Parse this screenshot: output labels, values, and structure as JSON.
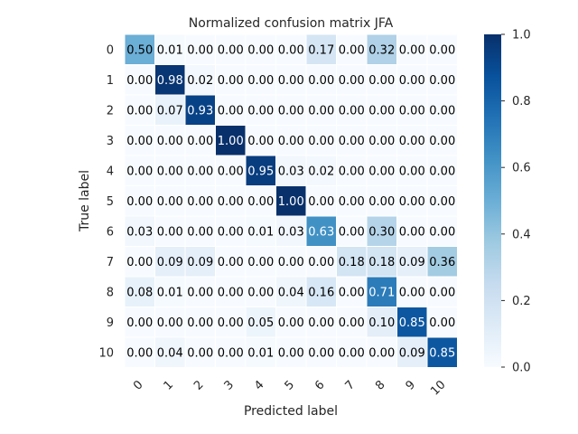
{
  "chart_data": {
    "type": "heatmap",
    "title": "Normalized confusion matrix JFA",
    "xlabel": "Predicted label",
    "ylabel": "True label",
    "x_categories": [
      "0",
      "1",
      "2",
      "3",
      "4",
      "5",
      "6",
      "7",
      "8",
      "9",
      "10"
    ],
    "y_categories": [
      "0",
      "1",
      "2",
      "3",
      "4",
      "5",
      "6",
      "7",
      "8",
      "9",
      "10"
    ],
    "values": [
      [
        0.5,
        0.01,
        0.0,
        0.0,
        0.0,
        0.0,
        0.17,
        0.0,
        0.32,
        0.0,
        0.0
      ],
      [
        0.0,
        0.98,
        0.02,
        0.0,
        0.0,
        0.0,
        0.0,
        0.0,
        0.0,
        0.0,
        0.0
      ],
      [
        0.0,
        0.07,
        0.93,
        0.0,
        0.0,
        0.0,
        0.0,
        0.0,
        0.0,
        0.0,
        0.0
      ],
      [
        0.0,
        0.0,
        0.0,
        1.0,
        0.0,
        0.0,
        0.0,
        0.0,
        0.0,
        0.0,
        0.0
      ],
      [
        0.0,
        0.0,
        0.0,
        0.0,
        0.95,
        0.03,
        0.02,
        0.0,
        0.0,
        0.0,
        0.0
      ],
      [
        0.0,
        0.0,
        0.0,
        0.0,
        0.0,
        1.0,
        0.0,
        0.0,
        0.0,
        0.0,
        0.0
      ],
      [
        0.03,
        0.0,
        0.0,
        0.0,
        0.01,
        0.03,
        0.63,
        0.0,
        0.3,
        0.0,
        0.0
      ],
      [
        0.0,
        0.09,
        0.09,
        0.0,
        0.0,
        0.0,
        0.0,
        0.18,
        0.18,
        0.09,
        0.36
      ],
      [
        0.08,
        0.01,
        0.0,
        0.0,
        0.0,
        0.04,
        0.16,
        0.0,
        0.71,
        0.0,
        0.0
      ],
      [
        0.0,
        0.0,
        0.0,
        0.0,
        0.05,
        0.0,
        0.0,
        0.0,
        0.1,
        0.85,
        0.0
      ],
      [
        0.0,
        0.04,
        0.0,
        0.0,
        0.01,
        0.0,
        0.0,
        0.0,
        0.0,
        0.09,
        0.85
      ]
    ],
    "value_format": "0.00",
    "color_scale": {
      "name": "Blues",
      "min": 0.0,
      "max": 1.0
    },
    "colorbar_ticks": [
      "0.0",
      "0.2",
      "0.4",
      "0.6",
      "0.8",
      "1.0"
    ],
    "colors": {
      "low": "#f7fbff",
      "high": "#08306b",
      "text_dark": "#000000",
      "text_light": "#ffffff",
      "grid": "#ffffff"
    },
    "grid": true
  }
}
